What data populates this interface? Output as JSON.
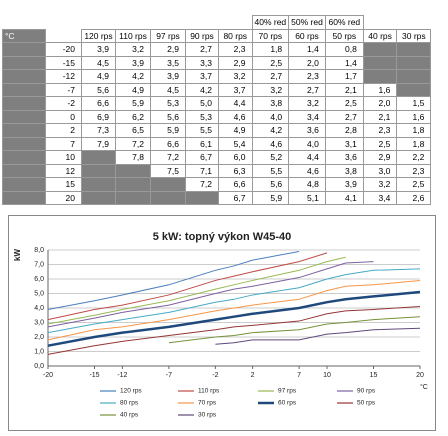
{
  "table": {
    "corner": "°C",
    "columns": [
      {
        "label": "120 rps"
      },
      {
        "label": "110 rps"
      },
      {
        "label": "97 rps"
      },
      {
        "label": "90 rps"
      },
      {
        "label": "80 rps"
      },
      {
        "note": "40% red",
        "label": "70 rps"
      },
      {
        "note": "50% red",
        "label": "60 rps"
      },
      {
        "note": "60% red",
        "label": "50 rps"
      },
      {
        "label": "40 rps"
      },
      {
        "label": "30 rps"
      }
    ],
    "rows": [
      {
        "temp": "-20",
        "cells": [
          "3,9",
          "3,2",
          "2,9",
          "2,7",
          "2,3",
          "1,8",
          "1,4",
          "0,8",
          null,
          null
        ]
      },
      {
        "temp": "-15",
        "cells": [
          "4,5",
          "3,9",
          "3,5",
          "3,3",
          "2,9",
          "2,5",
          "2,0",
          "1,4",
          null,
          null
        ]
      },
      {
        "temp": "-12",
        "cells": [
          "4,9",
          "4,2",
          "3,9",
          "3,7",
          "3,2",
          "2,7",
          "2,3",
          "1,7",
          null,
          null
        ]
      },
      {
        "temp": "-7",
        "cells": [
          "5,6",
          "4,9",
          "4,5",
          "4,2",
          "3,7",
          "3,2",
          "2,7",
          "2,1",
          "1,6",
          null
        ]
      },
      {
        "temp": "-2",
        "cells": [
          "6,6",
          "5,9",
          "5,3",
          "5,0",
          "4,4",
          "3,8",
          "3,2",
          "2,5",
          "2,0",
          "1,5"
        ]
      },
      {
        "temp": "0",
        "cells": [
          "6,9",
          "6,2",
          "5,6",
          "5,3",
          "4,6",
          "4,0",
          "3,4",
          "2,7",
          "2,1",
          "1,6"
        ]
      },
      {
        "temp": "2",
        "cells": [
          "7,3",
          "6,5",
          "5,9",
          "5,5",
          "4,9",
          "4,2",
          "3,6",
          "2,8",
          "2,3",
          "1,8"
        ]
      },
      {
        "temp": "7",
        "cells": [
          "7,9",
          "7,2",
          "6,6",
          "6,1",
          "5,4",
          "4,6",
          "4,0",
          "3,1",
          "2,5",
          "1,8"
        ]
      },
      {
        "temp": "10",
        "cells": [
          null,
          "7,8",
          "7,2",
          "6,7",
          "6,0",
          "5,2",
          "4,4",
          "3,6",
          "2,9",
          "2,2"
        ]
      },
      {
        "temp": "12",
        "cells": [
          null,
          null,
          "7,5",
          "7,1",
          "6,3",
          "5,5",
          "4,6",
          "3,8",
          "3,0",
          "2,3"
        ]
      },
      {
        "temp": "15",
        "cells": [
          null,
          null,
          null,
          "7,2",
          "6,6",
          "5,6",
          "4,8",
          "3,9",
          "3,2",
          "2,5"
        ]
      },
      {
        "temp": "20",
        "cells": [
          null,
          null,
          null,
          null,
          "6,7",
          "5,9",
          "5,1",
          "4,1",
          "3,4",
          "2,6"
        ]
      }
    ]
  },
  "chart_data": {
    "type": "line",
    "title": "5 kW: topný výkon W45-40",
    "y_label": "kW",
    "x_label": "°C",
    "x": [
      -20,
      -15,
      -12,
      -7,
      -2,
      0,
      2,
      7,
      10,
      12,
      15,
      20
    ],
    "xlim": [
      -20,
      20
    ],
    "xticks": [
      -20,
      -15,
      -12,
      -7,
      -2,
      2,
      7,
      10,
      15,
      20
    ],
    "ylim": [
      0,
      8
    ],
    "yticks": [
      {
        "value": 0,
        "label": "0,0"
      },
      {
        "value": 1,
        "label": "1,0"
      },
      {
        "value": 2,
        "label": "2,0"
      },
      {
        "value": 3,
        "label": "3,0"
      },
      {
        "value": 4,
        "label": "4,0"
      },
      {
        "value": 5,
        "label": "5,0"
      },
      {
        "value": 6,
        "label": "6,0"
      },
      {
        "value": 7,
        "label": "7,0"
      },
      {
        "value": 8,
        "label": "8,0"
      }
    ],
    "grid": true,
    "series": [
      {
        "name": "120 rps",
        "color": "#4a7ebb",
        "values": [
          3.9,
          4.5,
          4.9,
          5.6,
          6.6,
          6.9,
          7.3,
          7.9,
          null,
          null,
          null,
          null
        ]
      },
      {
        "name": "110 rps",
        "color": "#be4b48",
        "values": [
          3.2,
          3.9,
          4.2,
          4.9,
          5.9,
          6.2,
          6.5,
          7.2,
          7.8,
          null,
          null,
          null
        ]
      },
      {
        "name": "97 rps",
        "color": "#98b954",
        "values": [
          2.9,
          3.5,
          3.9,
          4.5,
          5.3,
          5.6,
          5.9,
          6.6,
          7.2,
          7.5,
          null,
          null
        ]
      },
      {
        "name": "90 rps",
        "color": "#7d60a0",
        "values": [
          2.7,
          3.3,
          3.7,
          4.2,
          5.0,
          5.3,
          5.5,
          6.1,
          6.7,
          7.1,
          7.2,
          null
        ]
      },
      {
        "name": "80 rps",
        "color": "#46aac5",
        "values": [
          2.3,
          2.9,
          3.2,
          3.7,
          4.4,
          4.6,
          4.9,
          5.4,
          6.0,
          6.3,
          6.6,
          6.7
        ]
      },
      {
        "name": "70 rps",
        "color": "#f79646",
        "values": [
          1.8,
          2.5,
          2.7,
          3.2,
          3.8,
          4.0,
          4.2,
          4.6,
          5.2,
          5.5,
          5.6,
          5.9
        ]
      },
      {
        "name": "60 rps",
        "color": "#1f497d",
        "linewidth": 2.5,
        "values": [
          1.4,
          2.0,
          2.3,
          2.7,
          3.2,
          3.4,
          3.6,
          4.0,
          4.4,
          4.6,
          4.8,
          5.1
        ]
      },
      {
        "name": "50 rps",
        "color": "#943634",
        "values": [
          0.8,
          1.4,
          1.7,
          2.1,
          2.5,
          2.7,
          2.8,
          3.1,
          3.6,
          3.8,
          3.9,
          4.1
        ]
      },
      {
        "name": "40 rps",
        "color": "#76923c",
        "values": [
          null,
          null,
          null,
          1.6,
          2.0,
          2.1,
          2.3,
          2.5,
          2.9,
          3.0,
          3.2,
          3.4
        ]
      },
      {
        "name": "30 rps",
        "color": "#5f497a",
        "values": [
          null,
          null,
          null,
          null,
          1.5,
          1.6,
          1.8,
          1.8,
          2.2,
          2.3,
          2.5,
          2.6
        ]
      }
    ]
  }
}
